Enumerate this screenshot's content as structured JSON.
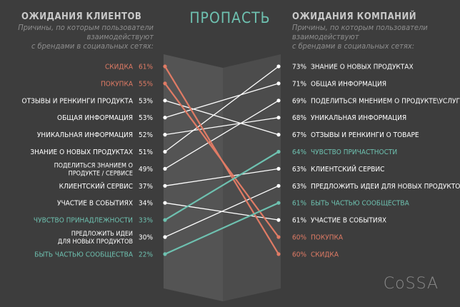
{
  "title": "ПРОПАСТЬ",
  "logo_text": "CoSSA",
  "colors": {
    "background": "#3d3d3d",
    "gap_panel": "#545454",
    "gap_panel_shade": "#4c4c4c",
    "normal": "#ffffff",
    "highlight_red": "#e07b65",
    "highlight_teal": "#6ec1b0",
    "header": "#c9c9c9",
    "subheader": "#8e8e8e"
  },
  "left_header": {
    "title": "ОЖИДАНИЯ КЛИЕНТОВ",
    "subtitle": [
      "Причины, по которым пользователи",
      "взаимодействуют",
      "с брендами в социальных сетях:"
    ]
  },
  "right_header": {
    "title": "ОЖИДАНИЯ КОМПАНИЙ",
    "subtitle": [
      "Причины, по которым пользователи",
      "взаимодействуют",
      "с брендами в социальных сетях:"
    ]
  },
  "chart_data": {
    "type": "slope",
    "title": "ПРОПАСТЬ",
    "left_items": [
      {
        "label": [
          "СКИДКА"
        ],
        "value": "61%",
        "color": "red"
      },
      {
        "label": [
          "ПОКУПКА"
        ],
        "value": "55%",
        "color": "red"
      },
      {
        "label": [
          "ОТЗЫВЫ И РЕНКИНГИ ПРОДУКТА"
        ],
        "value": "53%",
        "color": "white"
      },
      {
        "label": [
          "ОБЩАЯ ИНФОРМАЦИЯ"
        ],
        "value": "53%",
        "color": "white"
      },
      {
        "label": [
          "УНИКАЛЬНАЯ ИНФОРМАЦИЯ"
        ],
        "value": "52%",
        "color": "white"
      },
      {
        "label": [
          "ЗНАНИЕ О НОВЫХ ПРОДУКТАХ"
        ],
        "value": "51%",
        "color": "white"
      },
      {
        "label": [
          "ПОДЕЛИТЬСЯ ЗНАНИЕМ О",
          "ПРОДУКТЕ / СЕРВИСЕ"
        ],
        "value": "49%",
        "color": "white"
      },
      {
        "label": [
          "КЛИЕНТСКИЙ СЕРВИС"
        ],
        "value": "37%",
        "color": "white"
      },
      {
        "label": [
          "УЧАСТИЕ В СОБЫТИЯХ"
        ],
        "value": "34%",
        "color": "white"
      },
      {
        "label": [
          "ЧУВСТВО ПРИНАДЛЕЖНОСТИ"
        ],
        "value": "33%",
        "color": "teal"
      },
      {
        "label": [
          "ПРЕДЛОЖИТЬ ИДЕИ",
          "ДЛЯ НОВЫХ ПРОДУКТОВ"
        ],
        "value": "30%",
        "color": "white"
      },
      {
        "label": [
          "БЫТЬ ЧАСТЬЮ СООБЩЕСТВА"
        ],
        "value": "22%",
        "color": "teal"
      }
    ],
    "right_items": [
      {
        "label": "ЗНАНИЕ О НОВЫХ ПРОДУКТАХ",
        "value": "73%",
        "color": "white"
      },
      {
        "label": "ОБЩАЯ ИНФОРМАЦИЯ",
        "value": "71%",
        "color": "white"
      },
      {
        "label": "ПОДЕЛИТЬСЯ МНЕНИЕМ О ПРОДУКТЕ\\УСЛУГЕ",
        "value": "69%",
        "color": "white"
      },
      {
        "label": "УНИКАЛЬНАЯ ИНФОРМАЦИЯ",
        "value": "68%",
        "color": "white"
      },
      {
        "label": "ОТЗЫВЫ И РЕНКИНГИ О ТОВАРЕ",
        "value": "67%",
        "color": "white"
      },
      {
        "label": "ЧУВСТВО ПРИЧАСТНОСТИ",
        "value": "64%",
        "color": "teal"
      },
      {
        "label": "КЛИЕНТСКИЙ СЕРВИС",
        "value": "63%",
        "color": "white"
      },
      {
        "label": "ПРЕДЛОЖИТЬ ИДЕИ ДЛЯ НОВЫХ ПРОДУКТОВ",
        "value": "63%",
        "color": "white"
      },
      {
        "label": "БЫТЬ ЧАСТЬЮ СООБЩЕСТВА",
        "value": "61%",
        "color": "teal"
      },
      {
        "label": "УЧАСТИЕ В СОБЫТИЯХ",
        "value": "61%",
        "color": "white"
      },
      {
        "label": "ПОКУПКА",
        "value": "60%",
        "color": "red"
      },
      {
        "label": "СКИДКА",
        "value": "60%",
        "color": "red"
      }
    ],
    "links": [
      {
        "from": 0,
        "to": 11,
        "color": "red"
      },
      {
        "from": 1,
        "to": 10,
        "color": "red"
      },
      {
        "from": 2,
        "to": 4,
        "color": "white"
      },
      {
        "from": 3,
        "to": 1,
        "color": "white"
      },
      {
        "from": 4,
        "to": 3,
        "color": "white"
      },
      {
        "from": 5,
        "to": 0,
        "color": "white"
      },
      {
        "from": 6,
        "to": 2,
        "color": "white"
      },
      {
        "from": 7,
        "to": 6,
        "color": "white"
      },
      {
        "from": 8,
        "to": 9,
        "color": "white"
      },
      {
        "from": 9,
        "to": 5,
        "color": "teal"
      },
      {
        "from": 10,
        "to": 7,
        "color": "white"
      },
      {
        "from": 11,
        "to": 8,
        "color": "teal"
      }
    ]
  }
}
